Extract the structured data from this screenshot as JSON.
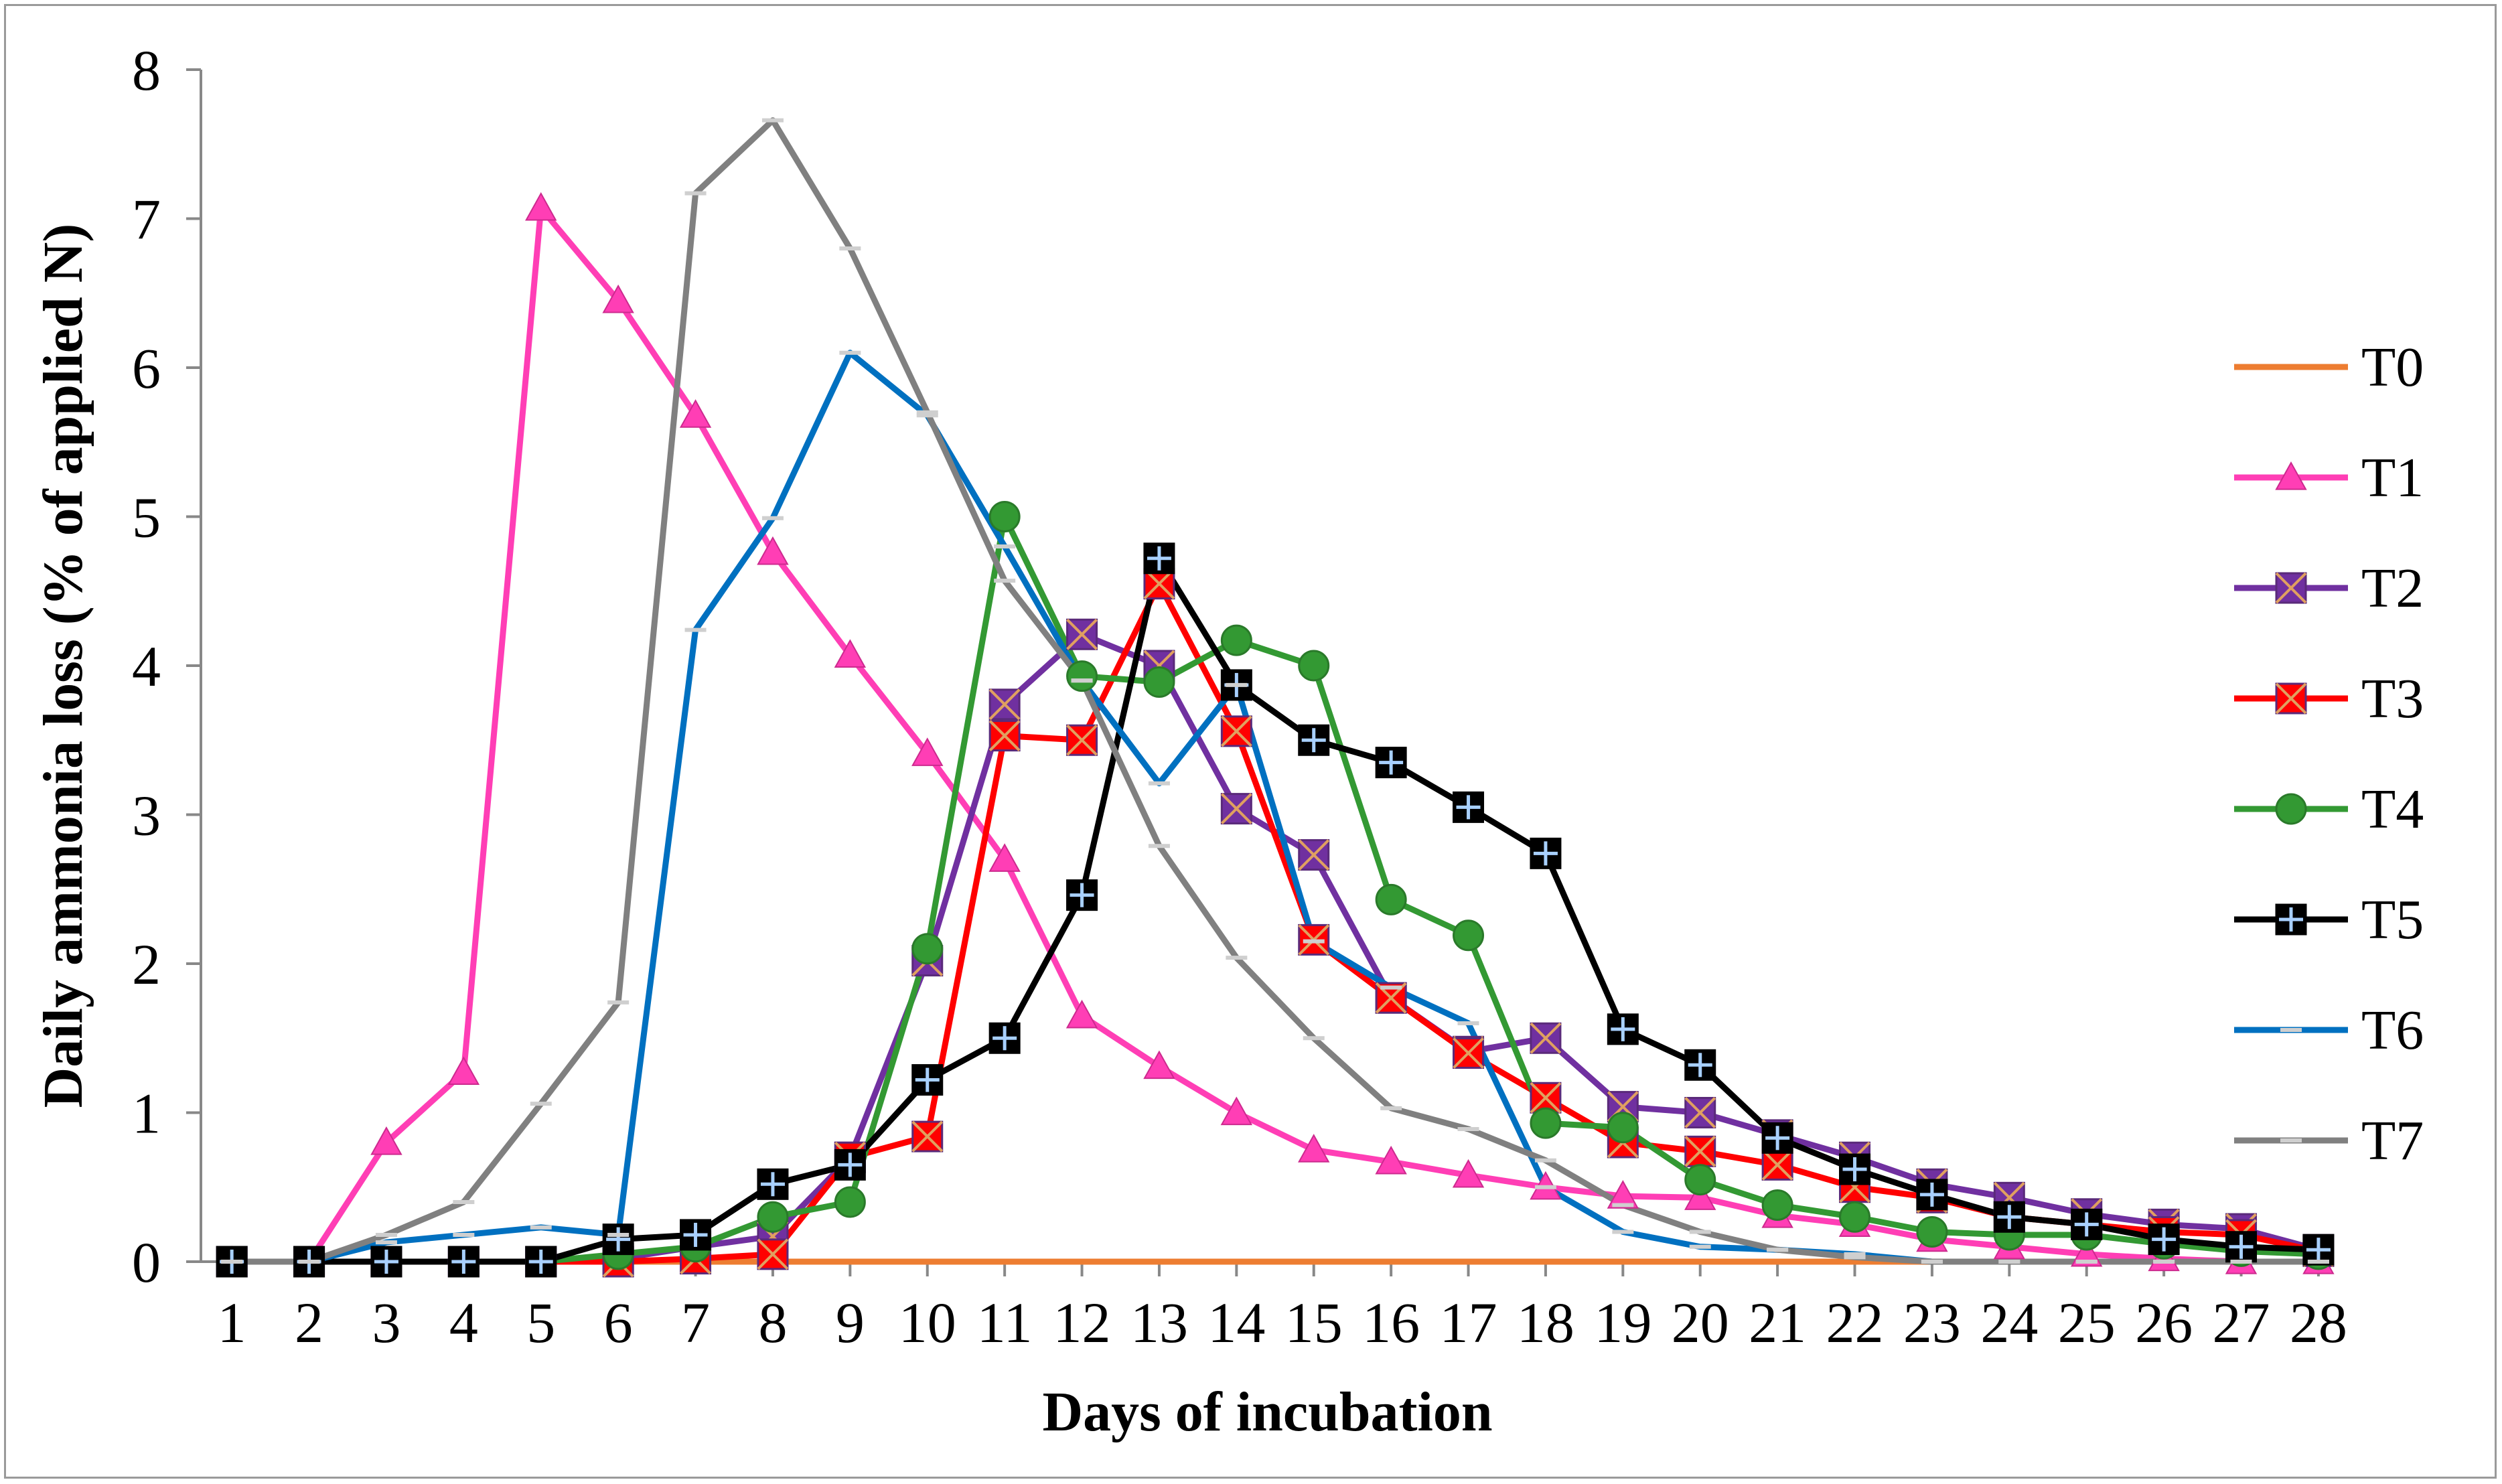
{
  "chart_data": {
    "type": "line",
    "xlabel": "Days of incubation",
    "ylabel": "Daily ammonia loss (% of applied N)",
    "x": [
      1,
      2,
      3,
      4,
      5,
      6,
      7,
      8,
      9,
      10,
      11,
      12,
      13,
      14,
      15,
      16,
      17,
      18,
      19,
      20,
      21,
      22,
      23,
      24,
      25,
      26,
      27,
      28
    ],
    "ylim": [
      0,
      8
    ],
    "yticks": [
      0,
      1,
      2,
      3,
      4,
      5,
      6,
      7,
      8
    ],
    "grid": false,
    "legend_position": "right",
    "series": [
      {
        "name": "T0",
        "color": "#ed7d31",
        "marker": "none",
        "values": [
          0,
          0,
          0,
          0,
          0,
          0,
          0,
          0,
          0,
          0,
          0,
          0,
          0,
          0,
          0,
          0,
          0,
          0,
          0,
          0,
          0,
          0,
          0,
          0,
          0,
          0,
          0,
          0
        ]
      },
      {
        "name": "T1",
        "color": "#ff3eb5",
        "marker": "triangle",
        "values": [
          0,
          0,
          0.8,
          1.27,
          7.07,
          6.45,
          5.68,
          4.76,
          4.07,
          3.41,
          2.7,
          1.65,
          1.31,
          1.0,
          0.75,
          0.67,
          0.58,
          0.5,
          0.44,
          0.43,
          0.31,
          0.25,
          0.15,
          0.1,
          0.05,
          0.02,
          0.0,
          0.0
        ]
      },
      {
        "name": "T2",
        "color": "#7030a0",
        "marker": "x-square",
        "values": [
          0,
          0,
          0,
          0,
          0,
          0.02,
          0.1,
          0.17,
          0.7,
          2.02,
          3.74,
          4.21,
          4.0,
          3.04,
          2.73,
          1.77,
          1.41,
          1.5,
          1.04,
          1.0,
          0.85,
          0.7,
          0.52,
          0.43,
          0.32,
          0.25,
          0.22,
          0.08
        ]
      },
      {
        "name": "T3",
        "color": "#ff0000",
        "marker": "x-square",
        "values": [
          0,
          0,
          0,
          0,
          0,
          0,
          0.02,
          0.05,
          0.7,
          0.84,
          3.53,
          3.5,
          4.55,
          3.56,
          2.16,
          1.77,
          1.4,
          1.1,
          0.8,
          0.74,
          0.65,
          0.5,
          0.43,
          0.3,
          0.25,
          0.2,
          0.18,
          0.07
        ]
      },
      {
        "name": "T4",
        "color": "#339933",
        "marker": "circle",
        "values": [
          0,
          0,
          0,
          0,
          0,
          0.05,
          0.1,
          0.3,
          0.4,
          2.1,
          5.0,
          3.93,
          3.89,
          4.17,
          4.0,
          2.43,
          2.19,
          0.93,
          0.9,
          0.55,
          0.38,
          0.3,
          0.2,
          0.18,
          0.18,
          0.12,
          0.07,
          0.05
        ]
      },
      {
        "name": "T5",
        "color": "#000000",
        "marker": "plus-square",
        "values": [
          0,
          0,
          0,
          0,
          0,
          0.15,
          0.18,
          0.52,
          0.65,
          1.22,
          1.5,
          2.46,
          4.72,
          3.87,
          3.5,
          3.35,
          3.05,
          2.74,
          1.56,
          1.32,
          0.83,
          0.62,
          0.45,
          0.3,
          0.25,
          0.15,
          0.1,
          0.08
        ]
      },
      {
        "name": "T6",
        "color": "#0070c0",
        "marker": "dash",
        "values": [
          0,
          0,
          0.13,
          0.18,
          0.23,
          0.18,
          4.24,
          4.99,
          6.1,
          5.68,
          4.8,
          3.9,
          3.21,
          3.87,
          2.15,
          1.84,
          1.6,
          0.5,
          0.2,
          0.1,
          0.08,
          0.05,
          0.0,
          0.0,
          0.0,
          0.0,
          0.0,
          0.0
        ]
      },
      {
        "name": "T7",
        "color": "#808080",
        "marker": "dash",
        "values": [
          0,
          0,
          0.18,
          0.4,
          1.06,
          1.74,
          7.17,
          7.66,
          6.8,
          5.7,
          4.57,
          3.9,
          2.79,
          2.04,
          1.5,
          1.03,
          0.89,
          0.68,
          0.38,
          0.2,
          0.08,
          0.03,
          0.0,
          0.0,
          0.0,
          0.0,
          0.0,
          0.0
        ]
      }
    ]
  }
}
